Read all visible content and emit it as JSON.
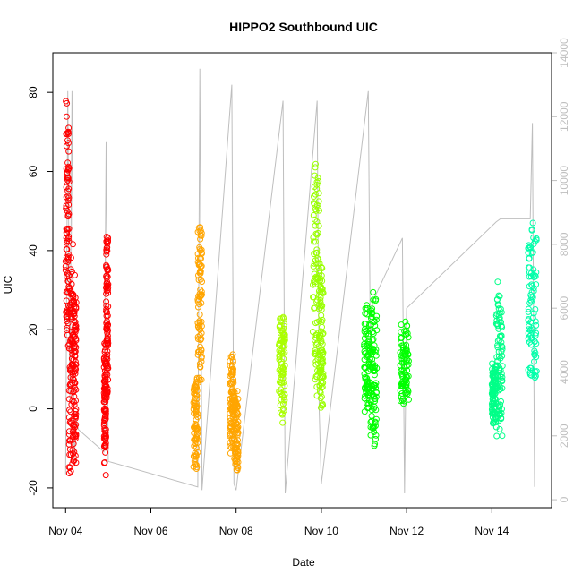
{
  "chart_data": {
    "type": "scatter",
    "title": "HIPPO2 Southbound UIC",
    "xlabel": "Date",
    "ylabel": "UIC",
    "x_ticks": [
      "Nov 04",
      "Nov 06",
      "Nov 08",
      "Nov 10",
      "Nov 12",
      "Nov 14"
    ],
    "x_tick_days": [
      4,
      6,
      8,
      10,
      12,
      14
    ],
    "xlim_days": [
      3.7,
      15.4
    ],
    "ylim": [
      -25,
      90
    ],
    "y_ticks": [
      -20,
      0,
      20,
      40,
      60,
      80
    ],
    "y2_ticks": [
      0,
      2000,
      4000,
      6000,
      8000,
      10000,
      12000,
      14000
    ],
    "y2lim": [
      -250,
      14000
    ],
    "secondary_axis_color": "#bebebe",
    "secondary_series": {
      "color": "#bebebe",
      "note": "flight-track altitude trace (right axis)",
      "days": [
        4.0,
        4.05,
        4.1,
        4.15,
        4.2,
        4.25,
        4.3,
        4.9,
        4.95,
        5.0,
        7.1,
        7.15,
        7.2,
        7.9,
        7.95,
        8.0,
        9.1,
        9.15,
        9.9,
        9.95,
        10.0,
        11.1,
        11.15,
        11.2,
        11.9,
        11.95,
        12.0,
        14.1,
        14.2,
        14.9,
        14.95,
        15.0
      ],
      "values": [
        800,
        12800,
        3200,
        12800,
        1200,
        2500,
        2200,
        1500,
        11200,
        1200,
        400,
        13500,
        300,
        13000,
        500,
        300,
        12500,
        200,
        12500,
        2800,
        500,
        12800,
        4500,
        6200,
        8200,
        200,
        6000,
        8700,
        8800,
        8800,
        11800,
        400
      ]
    },
    "series": [
      {
        "name": "",
        "color": "#ff0000",
        "x_range_days": [
          4.0,
          4.25
        ],
        "y_min": -22,
        "y_max": 85,
        "y_center": 28,
        "segments": [
          [
            4.0,
            4.08,
            10,
            85
          ],
          [
            4.08,
            4.18,
            -22,
            45
          ],
          [
            4.18,
            4.25,
            -15,
            35
          ]
        ]
      },
      {
        "name": "",
        "color": "#ff0000",
        "x_range_days": [
          4.9,
          5.0
        ],
        "y_min": -18,
        "y_max": 48,
        "y_center": 10,
        "segments": [
          [
            4.9,
            4.95,
            -18,
            20
          ],
          [
            4.95,
            5.0,
            0,
            48
          ]
        ]
      },
      {
        "name": "",
        "color": "#ffa500",
        "x_range_days": [
          7.0,
          7.2
        ],
        "y_min": -17,
        "y_max": 50,
        "y_center": 5,
        "segments": [
          [
            7.0,
            7.1,
            -17,
            10
          ],
          [
            7.1,
            7.2,
            5,
            50
          ]
        ]
      },
      {
        "name": "",
        "color": "#ffa500",
        "x_range_days": [
          7.85,
          8.05
        ],
        "y_min": -17,
        "y_max": 15,
        "y_center": 0,
        "segments": [
          [
            7.85,
            7.95,
            -12,
            15
          ],
          [
            7.95,
            8.05,
            -17,
            5
          ]
        ]
      },
      {
        "name": "",
        "color": "#aaff00",
        "x_range_days": [
          9.0,
          9.15
        ],
        "y_min": -5,
        "y_max": 25,
        "y_center": 10,
        "segments": [
          [
            9.0,
            9.15,
            -5,
            25
          ]
        ]
      },
      {
        "name": "",
        "color": "#99ff00",
        "x_range_days": [
          9.8,
          10.05
        ],
        "y_min": -3,
        "y_max": 64,
        "y_center": 30,
        "segments": [
          [
            9.8,
            9.95,
            0,
            64
          ],
          [
            9.95,
            10.05,
            -3,
            40
          ]
        ]
      },
      {
        "name": "",
        "color": "#00ff00",
        "x_range_days": [
          11.0,
          11.3
        ],
        "y_min": -12,
        "y_max": 31,
        "y_center": 10,
        "segments": [
          [
            11.0,
            11.15,
            -3,
            27
          ],
          [
            11.15,
            11.3,
            -12,
            31
          ]
        ]
      },
      {
        "name": "",
        "color": "#00ff00",
        "x_range_days": [
          11.85,
          12.05
        ],
        "y_min": 0,
        "y_max": 23,
        "y_center": 12,
        "segments": [
          [
            11.85,
            12.05,
            0,
            23
          ]
        ]
      },
      {
        "name": "",
        "color": "#00ff88",
        "x_range_days": [
          14.0,
          14.25
        ],
        "y_min": -10,
        "y_max": 35,
        "y_center": 8,
        "segments": [
          [
            14.0,
            14.1,
            -5,
            13
          ],
          [
            14.1,
            14.25,
            -10,
            35
          ]
        ]
      },
      {
        "name": "",
        "color": "#00ffaa",
        "x_range_days": [
          14.85,
          15.05
        ],
        "y_min": 3,
        "y_max": 50,
        "y_center": 20,
        "segments": [
          [
            14.85,
            15.05,
            3,
            50
          ]
        ]
      }
    ]
  }
}
